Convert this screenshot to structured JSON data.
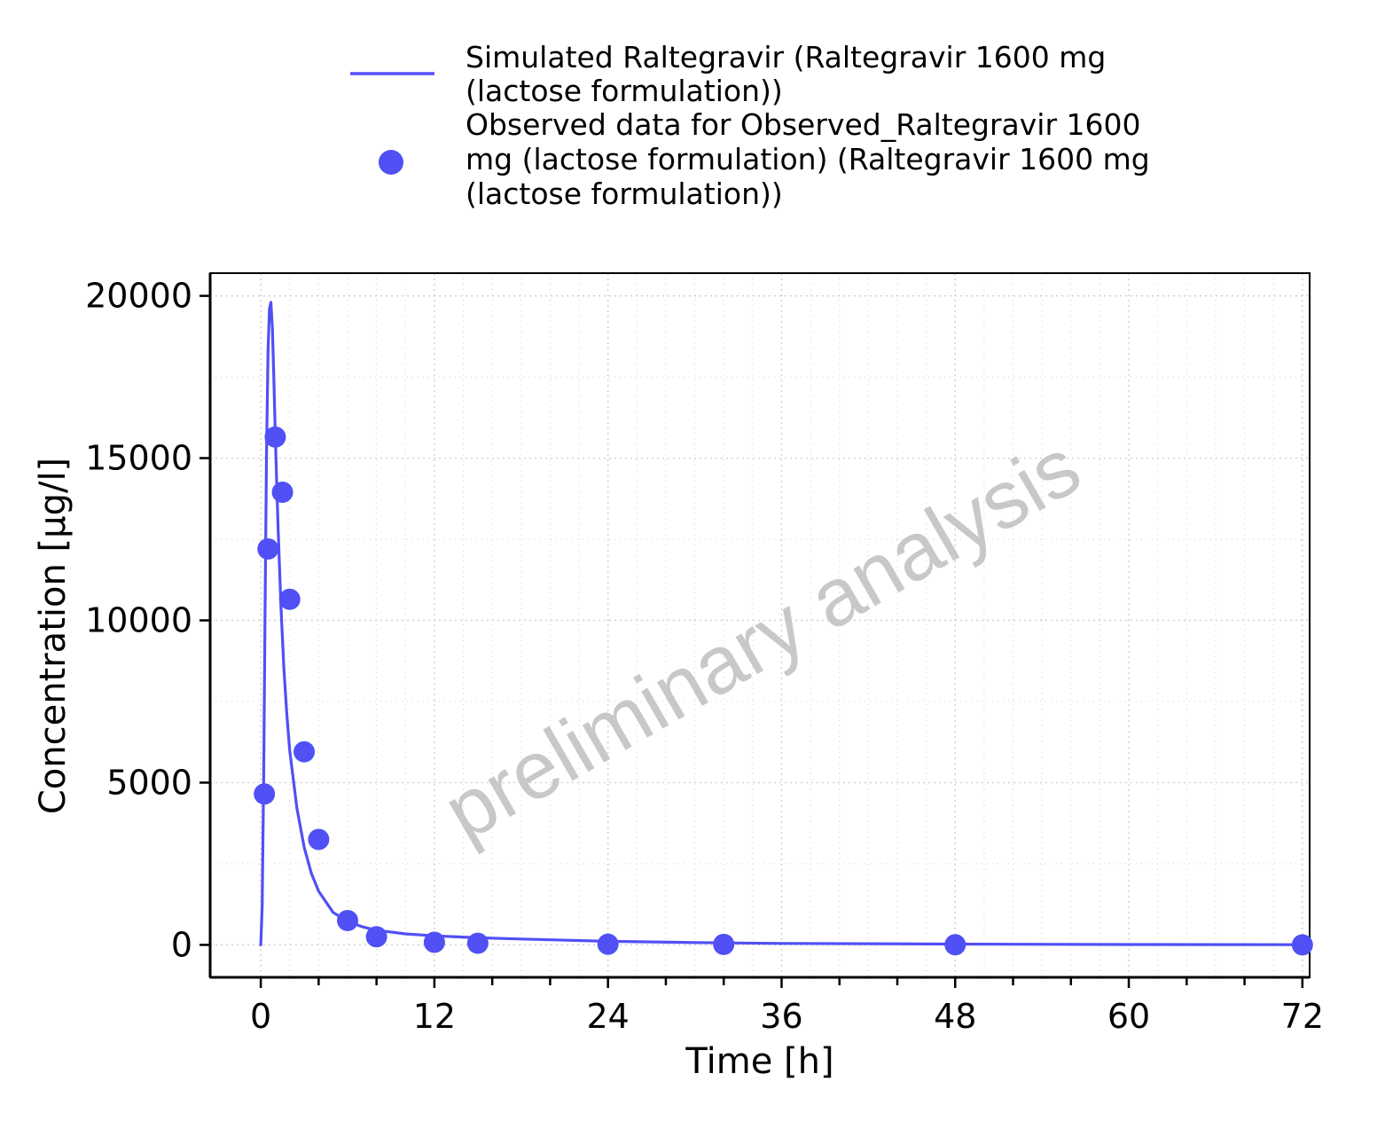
{
  "colors": {
    "series": "#5050f5",
    "watermark": "#c8c8c8",
    "grid": "#cfcfcf"
  },
  "legend": {
    "items": [
      {
        "marker": "line",
        "lines": [
          "Simulated Raltegravir (Raltegravir 1600 mg",
          "(lactose formulation))"
        ]
      },
      {
        "marker": "point",
        "lines": [
          "Observed data for Observed_Raltegravir 1600",
          "mg (lactose formulation) (Raltegravir 1600 mg",
          "(lactose formulation))"
        ]
      }
    ]
  },
  "watermark": "preliminary analysis",
  "chart_data": {
    "type": "scatter",
    "xlabel": "Time [h]",
    "ylabel": "Concentration [µg/l]",
    "xlim": [
      -3.5,
      72.5
    ],
    "ylim": [
      -1000,
      20700
    ],
    "xticks": [
      0,
      12,
      24,
      36,
      48,
      60,
      72
    ],
    "yticks": [
      0,
      5000,
      10000,
      15000,
      20000
    ],
    "grid": true,
    "legend_position": "top",
    "series": [
      {
        "name": "Simulated Raltegravir (Raltegravir 1600 mg (lactose formulation))",
        "kind": "line",
        "x": [
          0,
          0.1,
          0.2,
          0.3,
          0.4,
          0.5,
          0.6,
          0.7,
          0.8,
          0.9,
          1.0,
          1.1,
          1.2,
          1.4,
          1.6,
          1.8,
          2.0,
          2.5,
          3.0,
          3.5,
          4.0,
          5.0,
          6.0,
          7.0,
          8.0,
          10.0,
          12.0,
          15.0,
          18.0,
          24.0,
          30.0,
          36.0,
          48.0,
          60.0,
          72.0
        ],
        "y": [
          0,
          1200,
          5200,
          10500,
          15200,
          18300,
          19600,
          19800,
          19000,
          17500,
          15800,
          14200,
          12800,
          10400,
          8500,
          7100,
          6000,
          4200,
          3000,
          2200,
          1650,
          1000,
          720,
          560,
          450,
          340,
          280,
          220,
          180,
          110,
          70,
          45,
          25,
          12,
          6
        ]
      },
      {
        "name": "Observed data for Observed_Raltegravir 1600 mg (lactose formulation) (Raltegravir 1600 mg (lactose formulation))",
        "kind": "points",
        "x": [
          0.25,
          0.5,
          1.0,
          1.5,
          2.0,
          3.0,
          4.0,
          6.0,
          8.0,
          12.0,
          15.0,
          24.0,
          32.0,
          48.0,
          72.0
        ],
        "y": [
          4650,
          12200,
          15650,
          13950,
          10650,
          5950,
          3250,
          750,
          250,
          80,
          50,
          20,
          15,
          5,
          0
        ]
      }
    ]
  }
}
